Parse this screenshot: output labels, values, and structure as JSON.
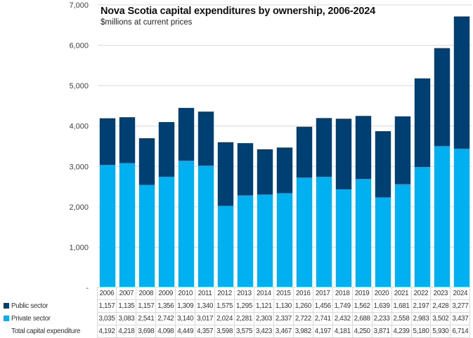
{
  "chart_data": {
    "type": "bar",
    "stacked": true,
    "title": "Nova Scotia capital expenditures by ownership, 2006-2024",
    "subtitle": "$millions at current prices",
    "xlabel": "",
    "ylabel": "",
    "ylim": [
      0,
      7000
    ],
    "yticks": [
      0,
      1000,
      2000,
      3000,
      4000,
      5000,
      6000,
      7000
    ],
    "ytick_labels": [
      "-",
      "1,000",
      "2,000",
      "3,000",
      "4,000",
      "5,000",
      "6,000",
      "7,000"
    ],
    "grid": true,
    "legend": "data-table-bottom",
    "categories": [
      "2006",
      "2007",
      "2008",
      "2009",
      "2010",
      "2011",
      "2012",
      "2013",
      "2014",
      "2015",
      "2016",
      "2017",
      "2018",
      "2019",
      "2020",
      "2021",
      "2022",
      "2023",
      "2024"
    ],
    "series": [
      {
        "name": "Private sector",
        "color": "#00B0F0",
        "values": [
          3035,
          3083,
          2541,
          2742,
          3140,
          3017,
          2024,
          2281,
          2303,
          2337,
          2722,
          2741,
          2432,
          2688,
          2233,
          2558,
          2983,
          3502,
          3437
        ]
      },
      {
        "name": "Public sector",
        "color": "#003F72",
        "values": [
          1157,
          1135,
          1157,
          1356,
          1309,
          1340,
          1575,
          1295,
          1121,
          1130,
          1260,
          1456,
          1749,
          1562,
          1639,
          1681,
          2197,
          2428,
          3277
        ]
      }
    ],
    "table": {
      "rows": [
        {
          "label": "Public sector",
          "swatch": "#003F72",
          "values": [
            "1,157",
            "1,135",
            "1,157",
            "1,356",
            "1,309",
            "1,340",
            "1,575",
            "1,295",
            "1,121",
            "1,130",
            "1,260",
            "1,456",
            "1,749",
            "1,562",
            "1,639",
            "1,681",
            "2,197",
            "2,428",
            "3,277"
          ]
        },
        {
          "label": "Private sector",
          "swatch": "#00B0F0",
          "values": [
            "3,035",
            "3,083",
            "2,541",
            "2,742",
            "3,140",
            "3,017",
            "2,024",
            "2,281",
            "2,303",
            "2,337",
            "2,722",
            "2,741",
            "2,432",
            "2,688",
            "2,233",
            "2,558",
            "2,983",
            "3,502",
            "3,437"
          ]
        },
        {
          "label": "Total capital expenditure",
          "swatch": null,
          "values": [
            "4,192",
            "4,218",
            "3,698",
            "4,098",
            "4,449",
            "4,357",
            "3,598",
            "3,575",
            "3,423",
            "3,467",
            "3,982",
            "4,197",
            "4,181",
            "4,250",
            "3,871",
            "4,239",
            "5,180",
            "5,930",
            "6,714"
          ]
        }
      ]
    }
  }
}
